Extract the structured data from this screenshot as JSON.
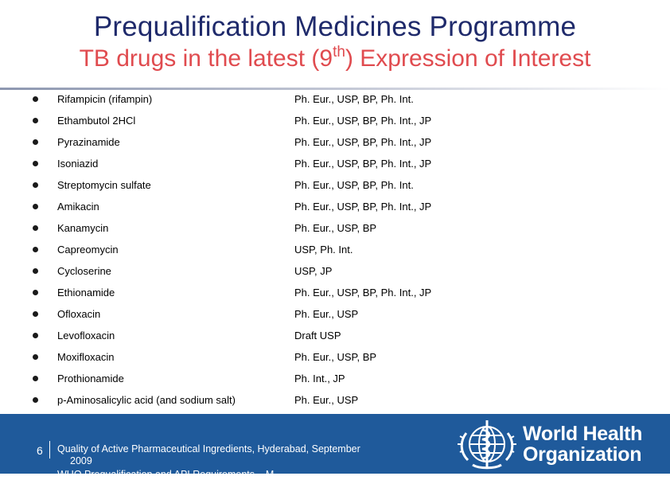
{
  "header": {
    "title": "Prequalification Medicines Programme",
    "subtitle_pre": "TB drugs in the latest (9",
    "subtitle_sup": "th",
    "subtitle_post": ") Expression of Interest"
  },
  "drugs": [
    {
      "name": "Rifampicin (rifampin)",
      "pharmacopoeias": "Ph. Eur., USP, BP, Ph. Int."
    },
    {
      "name": "Ethambutol 2HCl",
      "pharmacopoeias": "Ph. Eur., USP, BP, Ph. Int., JP"
    },
    {
      "name": "Pyrazinamide",
      "pharmacopoeias": "Ph. Eur., USP, BP, Ph. Int., JP"
    },
    {
      "name": "Isoniazid",
      "pharmacopoeias": "Ph. Eur., USP, BP, Ph. Int., JP"
    },
    {
      "name": "Streptomycin sulfate",
      "pharmacopoeias": "Ph. Eur., USP, BP, Ph. Int."
    },
    {
      "name": "Amikacin",
      "pharmacopoeias": "Ph. Eur., USP, BP, Ph. Int., JP"
    },
    {
      "name": "Kanamycin",
      "pharmacopoeias": "Ph. Eur., USP, BP"
    },
    {
      "name": "Capreomycin",
      "pharmacopoeias": "USP, Ph. Int."
    },
    {
      "name": "Cycloserine",
      "pharmacopoeias": "USP, JP"
    },
    {
      "name": "Ethionamide",
      "pharmacopoeias": "Ph. Eur., USP, BP, Ph. Int., JP"
    },
    {
      "name": "Ofloxacin",
      "pharmacopoeias": "Ph. Eur., USP"
    },
    {
      "name": "Levofloxacin",
      "pharmacopoeias": "Draft USP"
    },
    {
      "name": "Moxifloxacin",
      "pharmacopoeias": "Ph. Eur., USP, BP"
    },
    {
      "name": "Prothionamide",
      "pharmacopoeias": "Ph. Int., JP"
    },
    {
      "name": "p-Aminosalicylic acid (and sodium salt)",
      "pharmacopoeias": "Ph. Eur., USP"
    }
  ],
  "footer": {
    "page_number": "6",
    "line1": "Quality of Active Pharmaceutical Ingredients, Hyderabad, September",
    "line2": "2009",
    "line3": "WHO Prequalification and API Requirements – M...",
    "org_line1": "World Health",
    "org_line2": "Organization"
  },
  "colors": {
    "title": "#1f2a6b",
    "subtitle": "#e04b4f",
    "footer_bg": "#1f5a9b"
  },
  "icons": {
    "logo": "who-emblem-icon",
    "bullet": "round-bullet-icon"
  }
}
